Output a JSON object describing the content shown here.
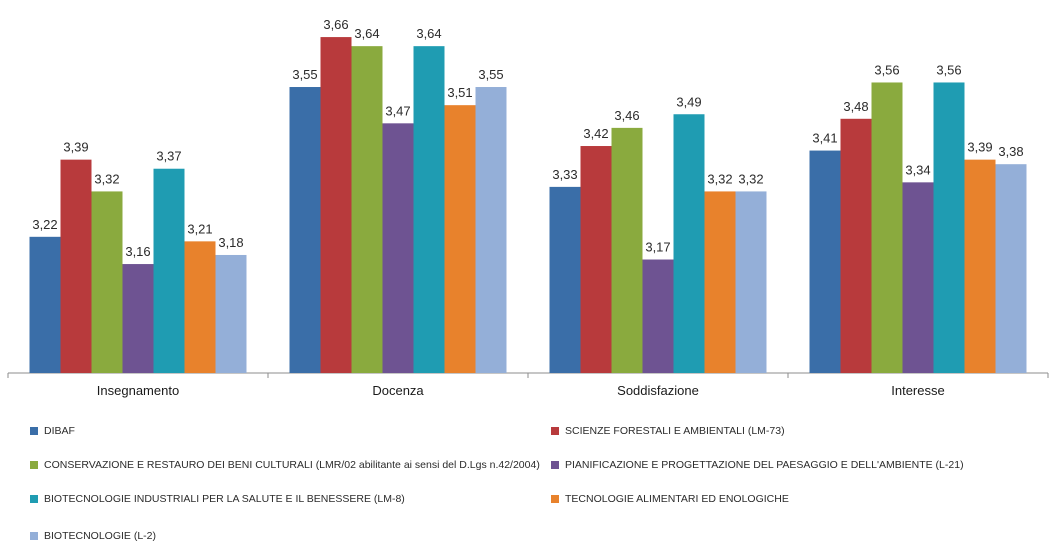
{
  "chart_data": {
    "type": "bar",
    "categories": [
      "Insegnamento",
      "Docenza",
      "Soddisfazione",
      "Interesse"
    ],
    "series": [
      {
        "name": "DIBAF",
        "color": "#3a6ea8",
        "values": [
          3.22,
          3.55,
          3.33,
          3.41
        ],
        "labels": [
          "3,22",
          "3,55",
          "3,33",
          "3,41"
        ]
      },
      {
        "name": "SCIENZE FORESTALI E AMBIENTALI (LM-73)",
        "color": "#b83a3c",
        "values": [
          3.39,
          3.66,
          3.42,
          3.48
        ],
        "labels": [
          "3,39",
          "3,66",
          "3,42",
          "3,48"
        ]
      },
      {
        "name": "CONSERVAZIONE E RESTAURO DEI  BENI CULTURALI (LMR/02 abilitante ai sensi del D.Lgs n.42/2004)",
        "color": "#8aaa3e",
        "values": [
          3.32,
          3.64,
          3.46,
          3.56
        ],
        "labels": [
          "3,32",
          "3,64",
          "3,46",
          "3,56"
        ]
      },
      {
        "name": "PIANIFICAZIONE E PROGETTAZIONE DEL PAESAGGIO E DELL'AMBIENTE  (L-21)",
        "color": "#6e5392",
        "values": [
          3.16,
          3.47,
          3.17,
          3.34
        ],
        "labels": [
          "3,16",
          "3,47",
          "3,17",
          "3,34"
        ]
      },
      {
        "name": "BIOTECNOLOGIE INDUSTRIALI PER LA SALUTE E IL BENESSERE (LM-8)",
        "color": "#1f9cb2",
        "values": [
          3.37,
          3.64,
          3.49,
          3.56
        ],
        "labels": [
          "3,37",
          "3,64",
          "3,49",
          "3,56"
        ]
      },
      {
        "name": "TECNOLOGIE ALIMENTARI ED ENOLOGICHE",
        "color": "#e8822c",
        "values": [
          3.21,
          3.51,
          3.32,
          3.39
        ],
        "labels": [
          "3,21",
          "3,51",
          "3,32",
          "3,39"
        ]
      },
      {
        "name": "BIOTECNOLOGIE (L-2)",
        "color": "#94afd8",
        "values": [
          3.18,
          3.55,
          3.32,
          3.38
        ],
        "labels": [
          "3,18",
          "3,55",
          "3,32",
          "3,38"
        ]
      }
    ],
    "ylim": [
      2.92,
      3.68
    ],
    "grid": false,
    "legend_position": "bottom"
  }
}
